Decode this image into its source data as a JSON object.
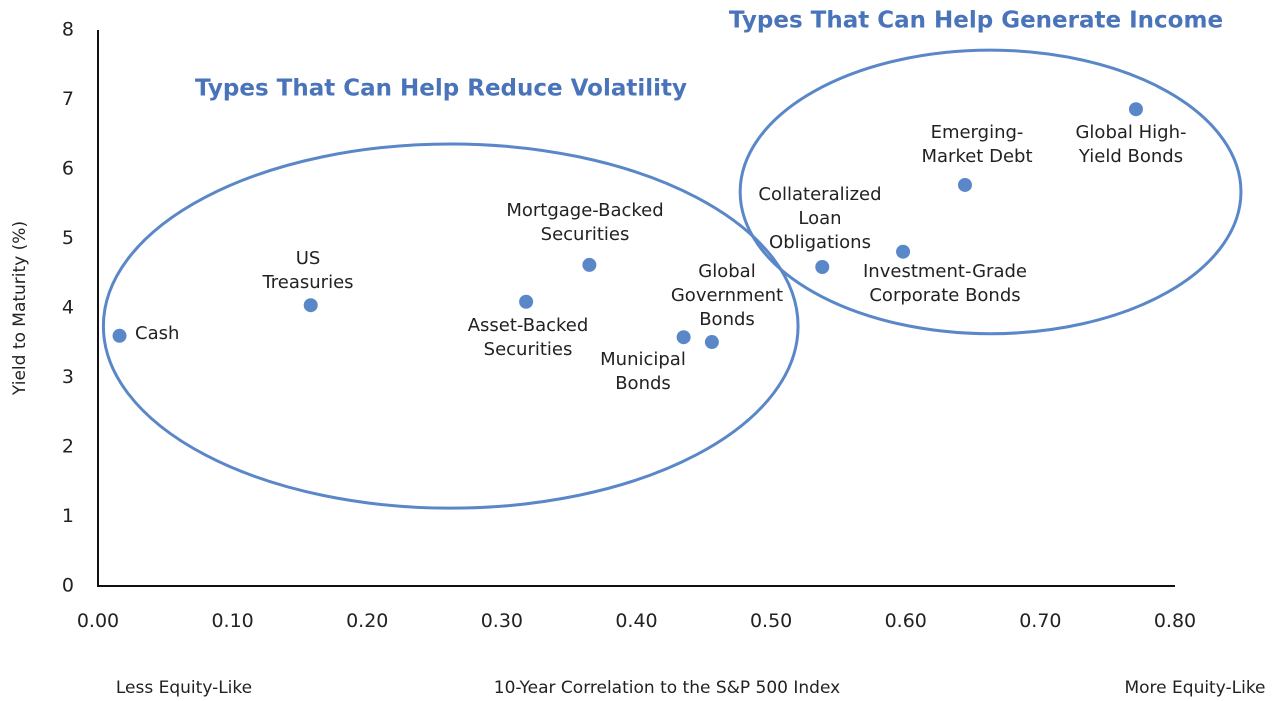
{
  "chart_data": {
    "type": "scatter",
    "title": "",
    "xlabel": "10-Year Correlation to the S&P 500 Index",
    "ylabel": "Yield to Maturity (%)",
    "x_end_labels": {
      "left": "Less Equity-Like",
      "right": "More Equity-Like"
    },
    "xlim": [
      0,
      0.8
    ],
    "ylim": [
      0,
      8
    ],
    "x_ticks": [
      "0.00",
      "0.10",
      "0.20",
      "0.30",
      "0.40",
      "0.50",
      "0.60",
      "0.70",
      "0.80"
    ],
    "y_ticks": [
      "0",
      "1",
      "2",
      "3",
      "4",
      "5",
      "6",
      "7",
      "8"
    ],
    "grid": false,
    "marker_color": "#5a87c8",
    "points": [
      {
        "label": [
          "Cash"
        ],
        "x": 0.016,
        "y": 3.6
      },
      {
        "label": [
          "US",
          "Treasuries"
        ],
        "x": 0.158,
        "y": 4.04
      },
      {
        "label": [
          "Asset-Backed",
          "Securities"
        ],
        "x": 0.318,
        "y": 4.09
      },
      {
        "label": [
          "Mortgage-Backed",
          "Securities"
        ],
        "x": 0.365,
        "y": 4.62
      },
      {
        "label": [
          "Municipal",
          "Bonds"
        ],
        "x": 0.435,
        "y": 3.58
      },
      {
        "label": [
          "Global",
          "Government",
          "Bonds"
        ],
        "x": 0.456,
        "y": 3.51
      },
      {
        "label": [
          "Collateralized",
          "Loan",
          "Obligations"
        ],
        "x": 0.538,
        "y": 4.59
      },
      {
        "label": [
          "Investment-Grade",
          "Corporate Bonds"
        ],
        "x": 0.598,
        "y": 4.81
      },
      {
        "label": [
          "Emerging-",
          "Market Debt"
        ],
        "x": 0.644,
        "y": 5.77
      },
      {
        "label": [
          "Global High-",
          "Yield Bonds"
        ],
        "x": 0.771,
        "y": 6.86
      }
    ],
    "groups": [
      {
        "title": "Types That Can Help Reduce Volatility",
        "center": [
          0.262,
          3.74
        ],
        "radius": [
          0.258,
          2.62
        ],
        "color": "#5a87c8"
      },
      {
        "title": "Types That Can Help Generate Income",
        "center": [
          0.663,
          5.67
        ],
        "radius": [
          0.186,
          2.04
        ],
        "color": "#5a87c8"
      }
    ]
  }
}
